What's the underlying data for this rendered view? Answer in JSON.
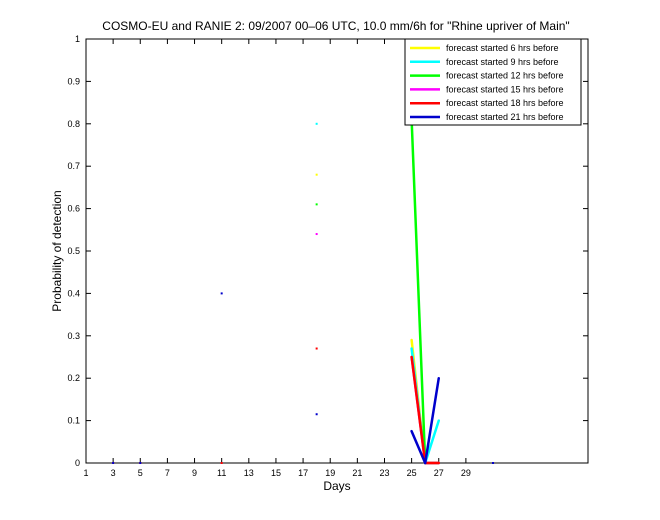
{
  "chart_data": {
    "type": "line",
    "title": "COSMO-EU and RANIE 2: 09/2007 00–06 UTC, 10.0 mm/6h for \"Rhine upriver of Main\"",
    "xlabel": "Days",
    "ylabel": "Probability of detection",
    "xlim": [
      1,
      38
    ],
    "ylim": [
      0,
      1
    ],
    "xticks": [
      1,
      3,
      5,
      7,
      9,
      11,
      13,
      15,
      17,
      19,
      21,
      23,
      25,
      27,
      29
    ],
    "yticks": [
      0,
      0.1,
      0.2,
      0.3,
      0.4,
      0.5,
      0.6,
      0.7,
      0.8,
      0.9,
      1
    ],
    "legend_position": "top-right",
    "series": [
      {
        "name": "forecast started 6 hrs before",
        "color": "#ffff00",
        "x": [
          3,
          5,
          11,
          18,
          25,
          26,
          27,
          31
        ],
        "y": [
          0,
          0,
          0,
          0.68,
          0.29,
          0,
          0,
          0
        ]
      },
      {
        "name": "forecast started 9 hrs before",
        "color": "#00ffff",
        "x": [
          3,
          5,
          11,
          18,
          25,
          26,
          27,
          31
        ],
        "y": [
          0,
          0,
          0,
          0.8,
          0.27,
          0,
          0.1,
          0
        ]
      },
      {
        "name": "forecast started 12 hrs before",
        "color": "#00ff00",
        "x": [
          3,
          5,
          11,
          18,
          25,
          26,
          27,
          31
        ],
        "y": [
          0,
          0,
          0,
          0.61,
          0.81,
          0,
          0,
          0
        ]
      },
      {
        "name": "forecast started 15 hrs before",
        "color": "#ff00ff",
        "x": [
          3,
          5,
          11,
          18,
          25,
          26,
          27,
          31
        ],
        "y": [
          0,
          0,
          0,
          0.54,
          0.25,
          0,
          0,
          0
        ]
      },
      {
        "name": "forecast started 18 hrs before",
        "color": "#ff0000",
        "x": [
          3,
          5,
          11,
          18,
          25,
          26,
          27,
          31
        ],
        "y": [
          0,
          0,
          0,
          0.27,
          0.25,
          0,
          0,
          0
        ]
      },
      {
        "name": "forecast started 21 hrs before",
        "color": "#0000cc",
        "x": [
          3,
          5,
          11,
          18,
          25,
          26,
          27,
          31
        ],
        "y": [
          0,
          0,
          0.4,
          0.115,
          0.075,
          0,
          0.2,
          0
        ]
      }
    ]
  }
}
